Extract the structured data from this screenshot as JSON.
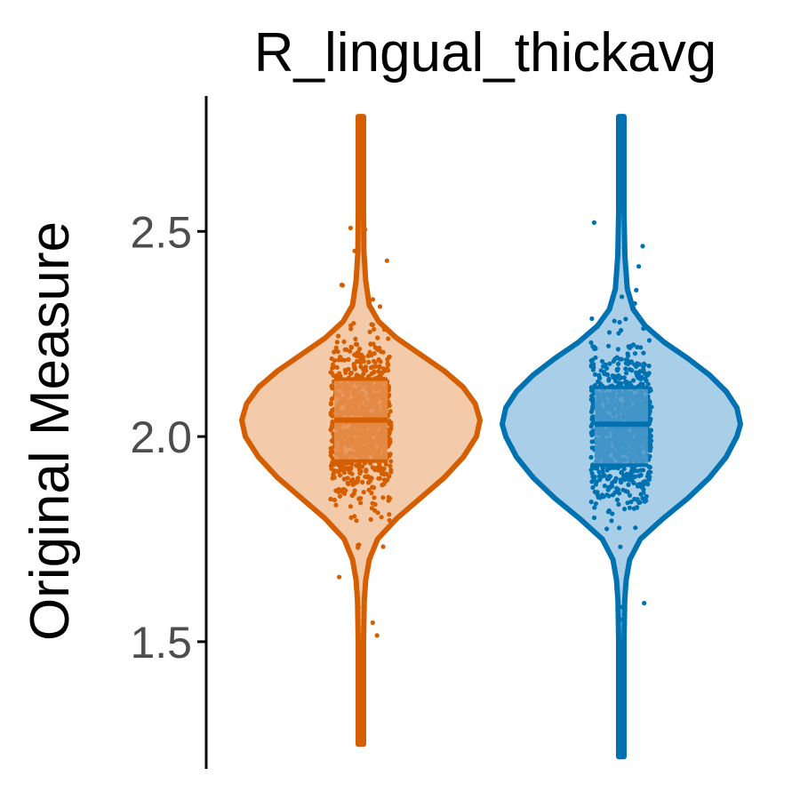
{
  "chart_data": {
    "type": "violin",
    "title": "R_lingual_thickavg",
    "ylabel": "Original Measure",
    "xlabel": "",
    "ylim": [
      1.19,
      2.83
    ],
    "yticks": [
      {
        "value": 1.5,
        "label": "1.5"
      },
      {
        "value": 2.0,
        "label": "2.0"
      },
      {
        "value": 2.5,
        "label": "2.5"
      }
    ],
    "grid": false,
    "legend": "none",
    "series": [
      {
        "color": "#D55E00",
        "fill": "#F3CBAA",
        "box_fill": "#E69150",
        "min": 1.25,
        "max": 2.78,
        "q1": 1.94,
        "median": 2.04,
        "q3": 2.14,
        "density": [
          [
            1.25,
            0.012
          ],
          [
            1.4,
            0.014
          ],
          [
            1.5,
            0.018
          ],
          [
            1.6,
            0.028
          ],
          [
            1.65,
            0.04
          ],
          [
            1.7,
            0.07
          ],
          [
            1.75,
            0.14
          ],
          [
            1.8,
            0.3
          ],
          [
            1.85,
            0.5
          ],
          [
            1.9,
            0.7
          ],
          [
            1.95,
            0.86
          ],
          [
            2.0,
            0.97
          ],
          [
            2.04,
            1.0
          ],
          [
            2.08,
            0.96
          ],
          [
            2.12,
            0.86
          ],
          [
            2.16,
            0.7
          ],
          [
            2.2,
            0.5
          ],
          [
            2.24,
            0.3
          ],
          [
            2.28,
            0.15
          ],
          [
            2.32,
            0.07
          ],
          [
            2.38,
            0.04
          ],
          [
            2.45,
            0.025
          ],
          [
            2.55,
            0.016
          ],
          [
            2.78,
            0.012
          ]
        ]
      },
      {
        "color": "#0072B2",
        "fill": "#A9CFE8",
        "box_fill": "#4C9ACB",
        "min": 1.22,
        "max": 2.78,
        "q1": 1.93,
        "median": 2.03,
        "q3": 2.12,
        "density": [
          [
            1.22,
            0.012
          ],
          [
            1.4,
            0.014
          ],
          [
            1.5,
            0.018
          ],
          [
            1.6,
            0.028
          ],
          [
            1.65,
            0.04
          ],
          [
            1.7,
            0.07
          ],
          [
            1.75,
            0.16
          ],
          [
            1.8,
            0.35
          ],
          [
            1.85,
            0.56
          ],
          [
            1.9,
            0.74
          ],
          [
            1.95,
            0.88
          ],
          [
            2.0,
            0.97
          ],
          [
            2.03,
            1.0
          ],
          [
            2.07,
            0.97
          ],
          [
            2.11,
            0.88
          ],
          [
            2.15,
            0.74
          ],
          [
            2.19,
            0.56
          ],
          [
            2.23,
            0.36
          ],
          [
            2.27,
            0.2
          ],
          [
            2.31,
            0.1
          ],
          [
            2.36,
            0.05
          ],
          [
            2.44,
            0.03
          ],
          [
            2.55,
            0.018
          ],
          [
            2.78,
            0.012
          ]
        ]
      }
    ]
  }
}
